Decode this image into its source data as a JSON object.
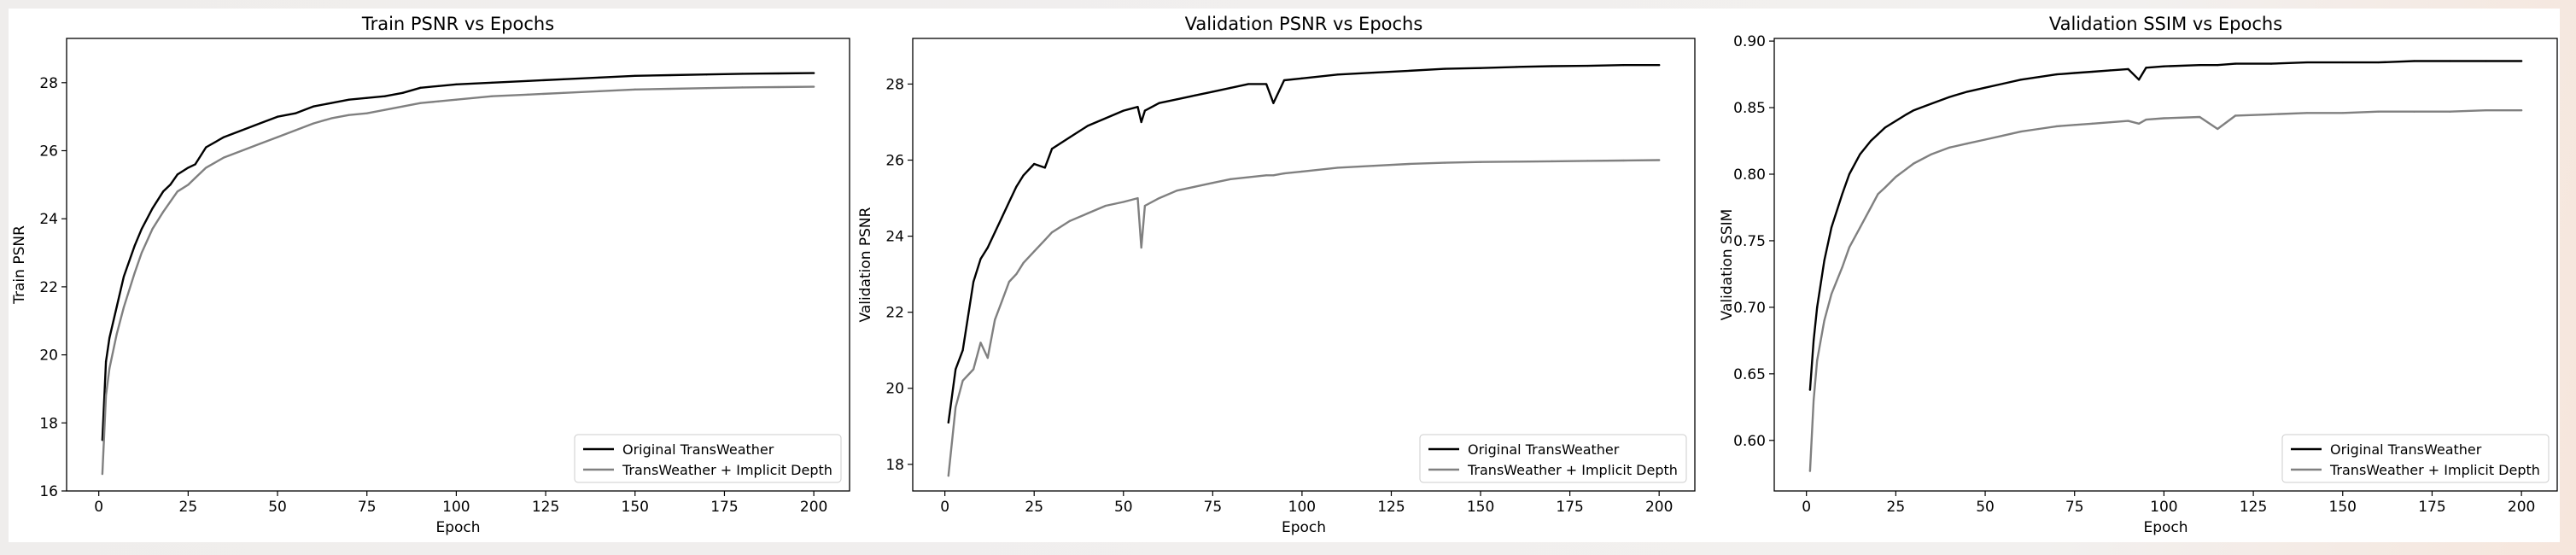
{
  "colors": {
    "original": "#000000",
    "implicit": "#808080",
    "axes": "#000000",
    "figure_background": "#ffffff"
  },
  "chart_data": [
    {
      "type": "line",
      "title": "Train PSNR vs Epochs",
      "xlabel": "Epoch",
      "ylabel": "Train PSNR",
      "xlim": [
        -9,
        210
      ],
      "ylim": [
        16,
        29.3
      ],
      "xticks": [
        0,
        25,
        50,
        75,
        100,
        125,
        150,
        175,
        200
      ],
      "yticks": [
        16,
        18,
        20,
        22,
        24,
        26,
        28
      ],
      "x": [
        1,
        2,
        3,
        5,
        7,
        10,
        12,
        15,
        18,
        20,
        22,
        25,
        27,
        30,
        35,
        40,
        45,
        50,
        55,
        60,
        65,
        70,
        75,
        80,
        85,
        90,
        95,
        100,
        110,
        120,
        130,
        140,
        150,
        160,
        170,
        180,
        190,
        200
      ],
      "series": [
        {
          "name": "Original TransWeather",
          "values": [
            17.5,
            19.8,
            20.5,
            21.4,
            22.3,
            23.2,
            23.7,
            24.3,
            24.8,
            25.0,
            25.3,
            25.5,
            25.6,
            26.1,
            26.4,
            26.6,
            26.8,
            27.0,
            27.1,
            27.3,
            27.4,
            27.5,
            27.55,
            27.6,
            27.7,
            27.85,
            27.9,
            27.95,
            28.0,
            28.05,
            28.1,
            28.15,
            28.2,
            28.22,
            28.24,
            28.26,
            28.27,
            28.28
          ]
        },
        {
          "name": "TransWeather + Implicit Depth",
          "values": [
            16.5,
            18.8,
            19.6,
            20.6,
            21.4,
            22.4,
            23.0,
            23.7,
            24.2,
            24.5,
            24.8,
            25.0,
            25.2,
            25.5,
            25.8,
            26.0,
            26.2,
            26.4,
            26.6,
            26.8,
            26.95,
            27.05,
            27.1,
            27.2,
            27.3,
            27.4,
            27.45,
            27.5,
            27.6,
            27.65,
            27.7,
            27.75,
            27.8,
            27.82,
            27.84,
            27.86,
            27.87,
            27.88
          ]
        }
      ],
      "legend_loc": "lower right"
    },
    {
      "type": "line",
      "title": "Validation PSNR vs Epochs",
      "xlabel": "Epoch",
      "ylabel": "Validation PSNR",
      "xlim": [
        -9,
        210
      ],
      "ylim": [
        17.3,
        29.2
      ],
      "xticks": [
        0,
        25,
        50,
        75,
        100,
        125,
        150,
        175,
        200
      ],
      "yticks": [
        18,
        20,
        22,
        24,
        26,
        28
      ],
      "x": [
        1,
        3,
        5,
        8,
        10,
        12,
        14,
        16,
        18,
        20,
        22,
        25,
        28,
        30,
        35,
        40,
        45,
        50,
        54,
        55,
        56,
        60,
        65,
        70,
        75,
        80,
        85,
        90,
        92,
        95,
        100,
        110,
        120,
        130,
        140,
        150,
        160,
        170,
        180,
        190,
        200
      ],
      "series": [
        {
          "name": "Original TransWeather",
          "values": [
            19.1,
            20.5,
            21.0,
            22.8,
            23.4,
            23.7,
            24.1,
            24.5,
            24.9,
            25.3,
            25.6,
            25.9,
            25.8,
            26.3,
            26.6,
            26.9,
            27.1,
            27.3,
            27.4,
            27.0,
            27.3,
            27.5,
            27.6,
            27.7,
            27.8,
            27.9,
            28.0,
            28.0,
            27.5,
            28.1,
            28.15,
            28.25,
            28.3,
            28.35,
            28.4,
            28.42,
            28.45,
            28.47,
            28.48,
            28.5,
            28.5
          ]
        },
        {
          "name": "TransWeather + Implicit Depth",
          "values": [
            17.7,
            19.5,
            20.2,
            20.5,
            21.2,
            20.8,
            21.8,
            22.3,
            22.8,
            23.0,
            23.3,
            23.6,
            23.9,
            24.1,
            24.4,
            24.6,
            24.8,
            24.9,
            25.0,
            23.7,
            24.8,
            25.0,
            25.2,
            25.3,
            25.4,
            25.5,
            25.55,
            25.6,
            25.6,
            25.65,
            25.7,
            25.8,
            25.85,
            25.9,
            25.93,
            25.95,
            25.96,
            25.97,
            25.98,
            25.99,
            26.0
          ]
        }
      ],
      "legend_loc": "lower right"
    },
    {
      "type": "line",
      "title": "Validation SSIM vs Epochs",
      "xlabel": "Epoch",
      "ylabel": "Validation SSIM",
      "xlim": [
        -9,
        210
      ],
      "ylim": [
        0.562,
        0.902
      ],
      "xticks": [
        0,
        25,
        50,
        75,
        100,
        125,
        150,
        175,
        200
      ],
      "yticks": [
        0.6,
        0.65,
        0.7,
        0.75,
        0.8,
        0.85,
        0.9
      ],
      "x": [
        1,
        2,
        3,
        5,
        7,
        10,
        12,
        15,
        18,
        20,
        22,
        25,
        28,
        30,
        35,
        40,
        45,
        50,
        55,
        60,
        65,
        70,
        75,
        80,
        85,
        90,
        93,
        95,
        100,
        110,
        115,
        120,
        130,
        140,
        150,
        160,
        170,
        180,
        190,
        200
      ],
      "series": [
        {
          "name": "Original TransWeather",
          "values": [
            0.638,
            0.675,
            0.7,
            0.735,
            0.76,
            0.785,
            0.8,
            0.815,
            0.825,
            0.83,
            0.835,
            0.84,
            0.845,
            0.848,
            0.853,
            0.858,
            0.862,
            0.865,
            0.868,
            0.871,
            0.873,
            0.875,
            0.876,
            0.877,
            0.878,
            0.879,
            0.871,
            0.88,
            0.881,
            0.882,
            0.882,
            0.883,
            0.883,
            0.884,
            0.884,
            0.884,
            0.885,
            0.885,
            0.885,
            0.885
          ]
        },
        {
          "name": "TransWeather + Implicit Depth",
          "values": [
            0.577,
            0.63,
            0.66,
            0.69,
            0.71,
            0.73,
            0.745,
            0.76,
            0.775,
            0.785,
            0.79,
            0.798,
            0.804,
            0.808,
            0.815,
            0.82,
            0.823,
            0.826,
            0.829,
            0.832,
            0.834,
            0.836,
            0.837,
            0.838,
            0.839,
            0.84,
            0.838,
            0.841,
            0.842,
            0.843,
            0.834,
            0.844,
            0.845,
            0.846,
            0.846,
            0.847,
            0.847,
            0.847,
            0.848,
            0.848
          ]
        }
      ],
      "legend_loc": "lower right"
    }
  ]
}
